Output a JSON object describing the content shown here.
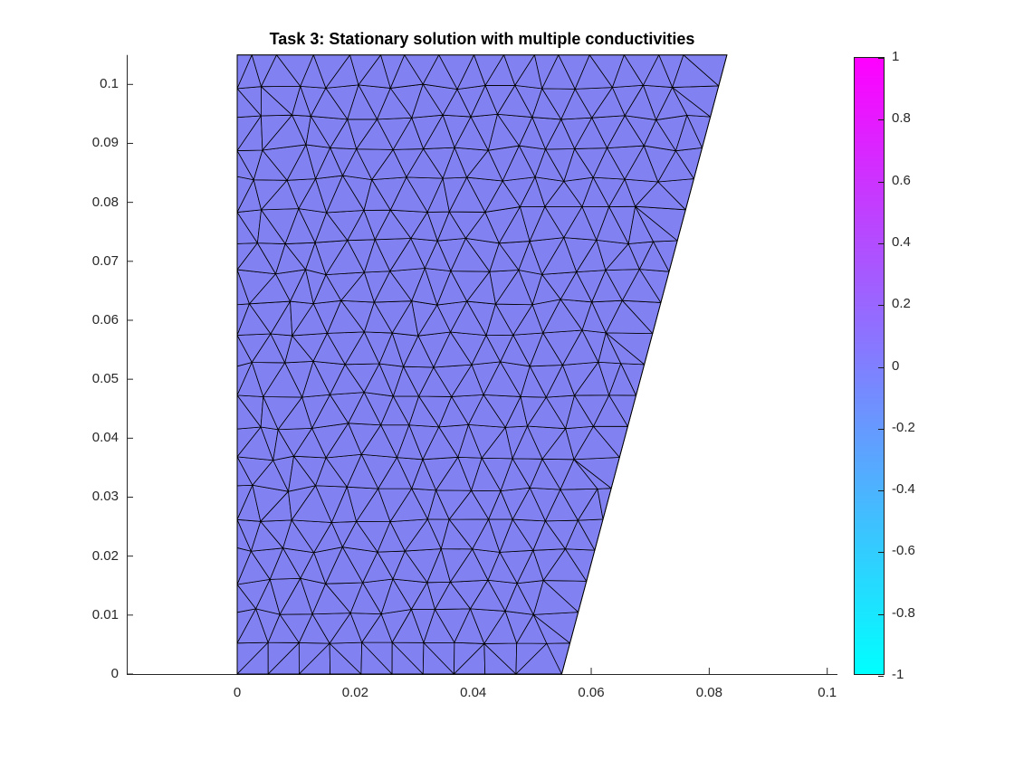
{
  "title": "Task 3: Stationary solution with multiple conductivities",
  "axes": {
    "x_tick_labels": [
      "0",
      "0.02",
      "0.04",
      "0.06",
      "0.08",
      "0.1"
    ],
    "x_tick_values": [
      0,
      0.02,
      0.04,
      0.06,
      0.08,
      0.1
    ],
    "y_tick_labels": [
      "0",
      "0.01",
      "0.02",
      "0.03",
      "0.04",
      "0.05",
      "0.06",
      "0.07",
      "0.08",
      "0.09",
      "0.1"
    ],
    "y_tick_values": [
      0,
      0.01,
      0.02,
      0.03,
      0.04,
      0.05,
      0.06,
      0.07,
      0.08,
      0.09,
      0.1
    ]
  },
  "colorbar": {
    "tick_labels": [
      "1",
      "0.8",
      "0.6",
      "0.4",
      "0.2",
      "0",
      "-0.2",
      "-0.4",
      "-0.6",
      "-0.8",
      "-1"
    ],
    "tick_values": [
      1,
      0.8,
      0.6,
      0.4,
      0.2,
      0,
      -0.2,
      -0.4,
      -0.6,
      -0.8,
      -1
    ],
    "max_color": "#ff00ff",
    "min_color": "#00ffff",
    "range": [
      -1,
      1
    ]
  },
  "style": {
    "axis_color": "#262626",
    "tick_label_color": "#262626",
    "title_color": "#000000",
    "background_color": "#ffffff"
  },
  "chart_data": {
    "type": "heatmap",
    "subtype": "fem-triangular-mesh-pseudocolor",
    "title": "Task 3: Stationary solution with multiple conductivities",
    "domain_polygon_xy": [
      [
        0,
        0
      ],
      [
        0.055,
        0
      ],
      [
        0.083,
        0.105
      ],
      [
        0,
        0.105
      ]
    ],
    "solution_value": 0,
    "value_range": [
      -1,
      1
    ],
    "colormap": "cool",
    "mesh_element_size": 0.00525,
    "mesh_fill_color": "#8181f2",
    "mesh_edge_color": "#000000",
    "xlim": [
      -0.0187,
      0.1017
    ],
    "ylim": [
      0,
      0.105
    ],
    "x_ticks": [
      0,
      0.02,
      0.04,
      0.06,
      0.08,
      0.1
    ],
    "y_ticks": [
      0,
      0.01,
      0.02,
      0.03,
      0.04,
      0.05,
      0.06,
      0.07,
      0.08,
      0.09,
      0.1
    ],
    "grid": false,
    "colorbar_position": "right"
  }
}
